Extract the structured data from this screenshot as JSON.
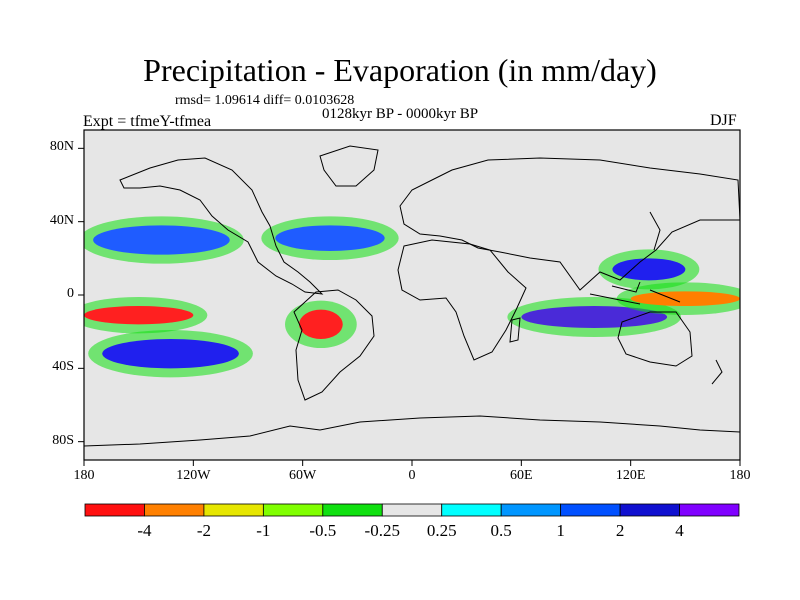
{
  "title": "Precipitation - Evaporation (in mm/day)",
  "stats_text": "rmsd= 1.09614 diff= 0.0103628",
  "period": "0128kyr BP - 0000kyr BP",
  "experiment": "Expt = tfmeY-tfmea",
  "season": "DJF",
  "map": {
    "projection": "cylindrical-equidistant",
    "lon_range": [
      -180,
      180
    ],
    "lat_range": [
      -90,
      90
    ],
    "background_color": "#e6e6e6",
    "lat_ticks": [
      {
        "value": 80,
        "label": "80N"
      },
      {
        "value": 40,
        "label": "40N"
      },
      {
        "value": 0,
        "label": "0"
      },
      {
        "value": -40,
        "label": "40S"
      },
      {
        "value": -80,
        "label": "80S"
      }
    ],
    "lon_ticks": [
      {
        "value": -180,
        "label": "180"
      },
      {
        "value": -120,
        "label": "120W"
      },
      {
        "value": -60,
        "label": "60W"
      },
      {
        "value": 0,
        "label": "0"
      },
      {
        "value": 60,
        "label": "60E"
      },
      {
        "value": 120,
        "label": "120E"
      },
      {
        "value": 180,
        "label": "180"
      }
    ],
    "regions": [
      {
        "name": "npac-wet-band",
        "color": "#1f5cff",
        "lon": [
          -175,
          -100
        ],
        "lat": [
          22,
          38
        ]
      },
      {
        "name": "natl-wet-band",
        "color": "#1f5cff",
        "lon": [
          -75,
          -15
        ],
        "lat": [
          24,
          38
        ]
      },
      {
        "name": "spac-dry-band",
        "color": "#ff2020",
        "lon": [
          -180,
          -120
        ],
        "lat": [
          -16,
          -6
        ]
      },
      {
        "name": "brazil-dry",
        "color": "#ff2020",
        "lon": [
          -62,
          -38
        ],
        "lat": [
          -24,
          -8
        ]
      },
      {
        "name": "south-pacific-wet",
        "color": "#2020ee",
        "lon": [
          -170,
          -95
        ],
        "lat": [
          -40,
          -24
        ]
      },
      {
        "name": "indian-ocean-wet",
        "color": "#4a2ad8",
        "lon": [
          60,
          140
        ],
        "lat": [
          -18,
          -6
        ]
      },
      {
        "name": "maritime-dry",
        "color": "#ff7f00",
        "lon": [
          120,
          180
        ],
        "lat": [
          -6,
          2
        ]
      },
      {
        "name": "west-pacific-wet",
        "color": "#2020ee",
        "lon": [
          110,
          150
        ],
        "lat": [
          8,
          20
        ]
      }
    ]
  },
  "colorbar": {
    "colors": [
      "#ff1010",
      "#ff8000",
      "#e6e600",
      "#80ff00",
      "#10e010",
      "#e6e6e6",
      "#00ffff",
      "#0096ff",
      "#0050ff",
      "#1010d0",
      "#8000ff"
    ],
    "labels": [
      "-4",
      "-2",
      "-1",
      "-0.5",
      "-0.25",
      "0.25",
      "0.5",
      "1",
      "2",
      "4"
    ]
  }
}
